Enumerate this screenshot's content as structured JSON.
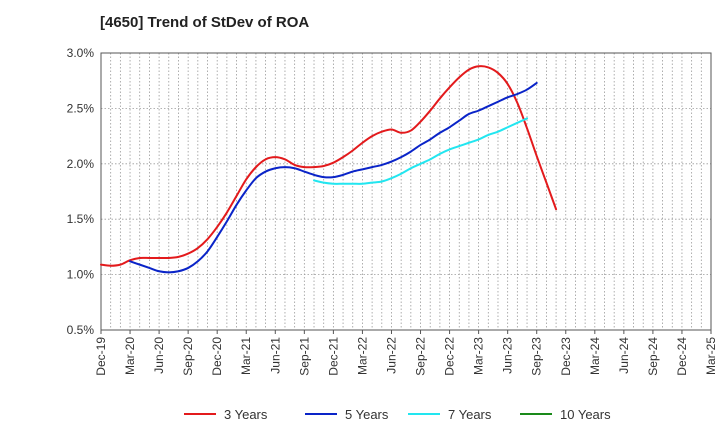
{
  "chart_data": {
    "type": "line",
    "title": "[4650]  Trend of StDev of ROA",
    "xlabel": "",
    "ylabel": "",
    "y_tick_labels": [
      "0.5%",
      "1.0%",
      "1.5%",
      "2.0%",
      "2.5%",
      "3.0%"
    ],
    "ylim": [
      0.5,
      3.0
    ],
    "x_tick_labels": [
      "Dec-19",
      "Mar-20",
      "Jun-20",
      "Sep-20",
      "Dec-20",
      "Mar-21",
      "Jun-21",
      "Sep-21",
      "Dec-21",
      "Mar-22",
      "Jun-22",
      "Sep-22",
      "Dec-22",
      "Mar-23",
      "Jun-23",
      "Sep-23",
      "Dec-23",
      "Mar-24",
      "Jun-24",
      "Sep-24",
      "Dec-24",
      "Mar-25"
    ],
    "grid": true,
    "legend_position": "bottom",
    "series": [
      {
        "name": "3 Years",
        "color": "#e31a1c",
        "start_index": 0,
        "values": [
          1.09,
          1.08,
          1.09,
          1.13,
          1.15,
          1.15,
          1.15,
          1.15,
          1.16,
          1.19,
          1.24,
          1.32,
          1.43,
          1.56,
          1.71,
          1.86,
          1.97,
          2.04,
          2.06,
          2.04,
          1.99,
          1.97,
          1.97,
          1.98,
          2.01,
          2.06,
          2.12,
          2.19,
          2.25,
          2.29,
          2.31,
          2.28,
          2.3,
          2.38,
          2.48,
          2.59,
          2.69,
          2.78,
          2.85,
          2.88,
          2.87,
          2.82,
          2.72,
          2.55,
          2.32,
          2.07,
          1.83,
          1.59
        ]
      },
      {
        "name": "5 Years",
        "color": "#0a24c8",
        "start_index": 3,
        "values": [
          1.12,
          1.09,
          1.06,
          1.03,
          1.02,
          1.03,
          1.06,
          1.12,
          1.21,
          1.34,
          1.48,
          1.63,
          1.76,
          1.87,
          1.93,
          1.96,
          1.97,
          1.96,
          1.93,
          1.9,
          1.88,
          1.88,
          1.9,
          1.93,
          1.95,
          1.97,
          1.99,
          2.02,
          2.06,
          2.11,
          2.17,
          2.22,
          2.28,
          2.33,
          2.39,
          2.45,
          2.48,
          2.52,
          2.56,
          2.6,
          2.63,
          2.67,
          2.73
        ]
      },
      {
        "name": "7 Years",
        "color": "#22e6f0",
        "start_index": 22,
        "values": [
          1.85,
          1.83,
          1.82,
          1.82,
          1.82,
          1.82,
          1.83,
          1.84,
          1.87,
          1.91,
          1.96,
          2.0,
          2.04,
          2.09,
          2.13,
          2.16,
          2.19,
          2.22,
          2.26,
          2.29,
          2.33,
          2.37,
          2.41
        ]
      },
      {
        "name": "10 Years",
        "color": "#1a8a1a",
        "start_index": 0,
        "values": []
      }
    ]
  }
}
